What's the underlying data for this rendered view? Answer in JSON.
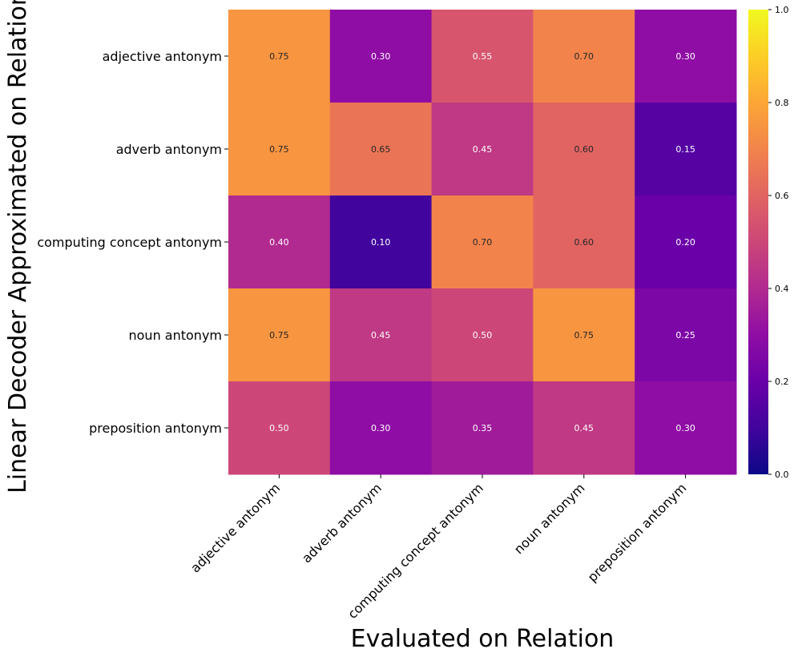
{
  "chart_data": {
    "type": "heatmap",
    "title": "",
    "xlabel": "Evaluated on Relation",
    "ylabel": "Linear Decoder Approximated on Relation",
    "x_categories": [
      "adjective antonym",
      "adverb antonym",
      "computing concept antonym",
      "noun antonym",
      "preposition antonym"
    ],
    "y_categories": [
      "adjective antonym",
      "adverb antonym",
      "computing concept antonym",
      "noun antonym",
      "preposition antonym"
    ],
    "values": [
      [
        0.75,
        0.3,
        0.55,
        0.7,
        0.3
      ],
      [
        0.75,
        0.65,
        0.45,
        0.6,
        0.15
      ],
      [
        0.4,
        0.1,
        0.7,
        0.6,
        0.2
      ],
      [
        0.75,
        0.45,
        0.5,
        0.75,
        0.25
      ],
      [
        0.5,
        0.3,
        0.35,
        0.45,
        0.3
      ]
    ],
    "colormap": "plasma",
    "vmin": 0.0,
    "vmax": 1.0,
    "annotation_format": "0.00",
    "colorbar": {
      "ticks": [
        0.0,
        0.2,
        0.4,
        0.6,
        0.8,
        1.0
      ],
      "tick_labels": [
        "0.0",
        "0.2",
        "0.4",
        "0.6",
        "0.8",
        "1.0"
      ]
    }
  }
}
